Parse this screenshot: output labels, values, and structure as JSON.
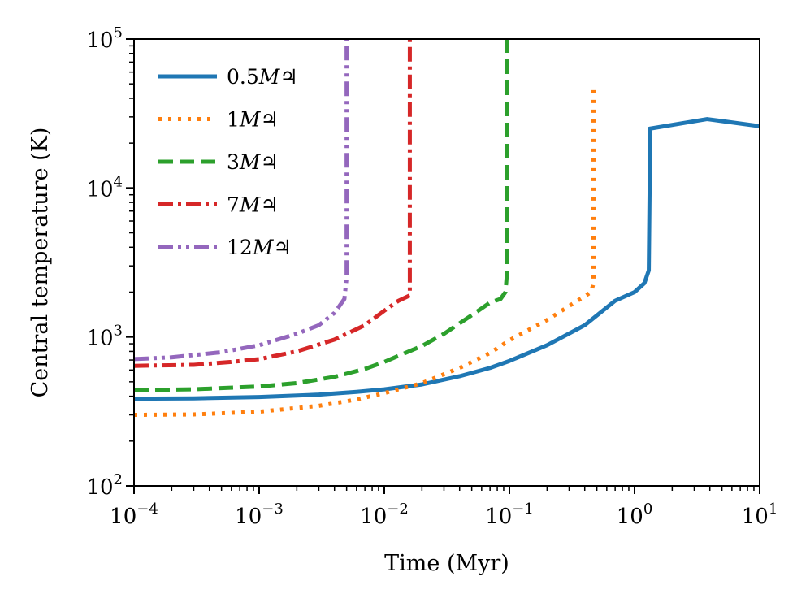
{
  "chart_data": {
    "type": "line",
    "title": "",
    "xlabel": "Time (Myr)",
    "ylabel": "Central temperature (K)",
    "xscale": "log",
    "yscale": "log",
    "xlim": [
      0.0001,
      10
    ],
    "ylim": [
      100,
      100000
    ],
    "grid": false,
    "legend_position": "top-left",
    "x_ticks": [
      {
        "value": 0.0001,
        "base": "10",
        "exp": "−4"
      },
      {
        "value": 0.001,
        "base": "10",
        "exp": "−3"
      },
      {
        "value": 0.01,
        "base": "10",
        "exp": "−2"
      },
      {
        "value": 0.1,
        "base": "10",
        "exp": "−1"
      },
      {
        "value": 1,
        "base": "10",
        "exp": "0"
      },
      {
        "value": 10,
        "base": "10",
        "exp": "1"
      }
    ],
    "y_ticks": [
      {
        "value": 100,
        "base": "10",
        "exp": "2"
      },
      {
        "value": 1000,
        "base": "10",
        "exp": "3"
      },
      {
        "value": 10000,
        "base": "10",
        "exp": "4"
      },
      {
        "value": 100000,
        "base": "10",
        "exp": "5"
      }
    ],
    "series": [
      {
        "name": "0.5M♃",
        "mass": "0.5",
        "unit": "M♃",
        "color": "#1f77b4",
        "dash": "solid",
        "points": [
          [
            0.0001,
            385
          ],
          [
            0.0003,
            387
          ],
          [
            0.001,
            395
          ],
          [
            0.003,
            410
          ],
          [
            0.006,
            428
          ],
          [
            0.01,
            445
          ],
          [
            0.02,
            480
          ],
          [
            0.04,
            545
          ],
          [
            0.07,
            620
          ],
          [
            0.1,
            690
          ],
          [
            0.2,
            880
          ],
          [
            0.4,
            1200
          ],
          [
            0.7,
            1750
          ],
          [
            1.0,
            2000
          ],
          [
            1.2,
            2300
          ],
          [
            1.3,
            2800
          ],
          [
            1.32,
            10000
          ],
          [
            1.32,
            25000
          ],
          [
            3.8,
            29000
          ],
          [
            10,
            26000
          ]
        ]
      },
      {
        "name": "1M♃",
        "mass": "1",
        "unit": "M♃",
        "color": "#ff7f0e",
        "dash": "dotted",
        "points": [
          [
            0.0001,
            300
          ],
          [
            0.0003,
            302
          ],
          [
            0.001,
            315
          ],
          [
            0.003,
            345
          ],
          [
            0.006,
            380
          ],
          [
            0.01,
            420
          ],
          [
            0.02,
            490
          ],
          [
            0.04,
            620
          ],
          [
            0.07,
            780
          ],
          [
            0.1,
            950
          ],
          [
            0.2,
            1300
          ],
          [
            0.35,
            1750
          ],
          [
            0.45,
            2000
          ],
          [
            0.47,
            2300
          ],
          [
            0.47,
            10000
          ],
          [
            0.47,
            46000
          ]
        ]
      },
      {
        "name": "3M♃",
        "mass": "3",
        "unit": "M♃",
        "color": "#2ca02c",
        "dash": "dashed",
        "points": [
          [
            0.0001,
            440
          ],
          [
            0.0003,
            445
          ],
          [
            0.001,
            465
          ],
          [
            0.002,
            490
          ],
          [
            0.004,
            540
          ],
          [
            0.007,
            610
          ],
          [
            0.01,
            680
          ],
          [
            0.02,
            870
          ],
          [
            0.03,
            1050
          ],
          [
            0.05,
            1400
          ],
          [
            0.07,
            1700
          ],
          [
            0.085,
            1800
          ],
          [
            0.093,
            2000
          ],
          [
            0.095,
            2500
          ],
          [
            0.095,
            10000
          ],
          [
            0.095,
            100000
          ]
        ]
      },
      {
        "name": "7M♃",
        "mass": "7",
        "unit": "M♃",
        "color": "#d62728",
        "dash": "dashdot",
        "points": [
          [
            0.0001,
            640
          ],
          [
            0.0003,
            650
          ],
          [
            0.0006,
            680
          ],
          [
            0.001,
            710
          ],
          [
            0.002,
            800
          ],
          [
            0.004,
            960
          ],
          [
            0.007,
            1200
          ],
          [
            0.01,
            1500
          ],
          [
            0.013,
            1750
          ],
          [
            0.016,
            1900
          ],
          [
            0.016,
            2100
          ],
          [
            0.016,
            10000
          ],
          [
            0.016,
            100000
          ]
        ]
      },
      {
        "name": "12M♃",
        "mass": "12",
        "unit": "M♃",
        "color": "#9467bd",
        "dash": "dashdotdot",
        "points": [
          [
            0.0001,
            710
          ],
          [
            0.0002,
            730
          ],
          [
            0.0005,
            790
          ],
          [
            0.001,
            880
          ],
          [
            0.002,
            1050
          ],
          [
            0.003,
            1200
          ],
          [
            0.004,
            1450
          ],
          [
            0.0048,
            1800
          ],
          [
            0.005,
            2500
          ],
          [
            0.005,
            10000
          ],
          [
            0.005,
            100000
          ]
        ]
      }
    ]
  }
}
